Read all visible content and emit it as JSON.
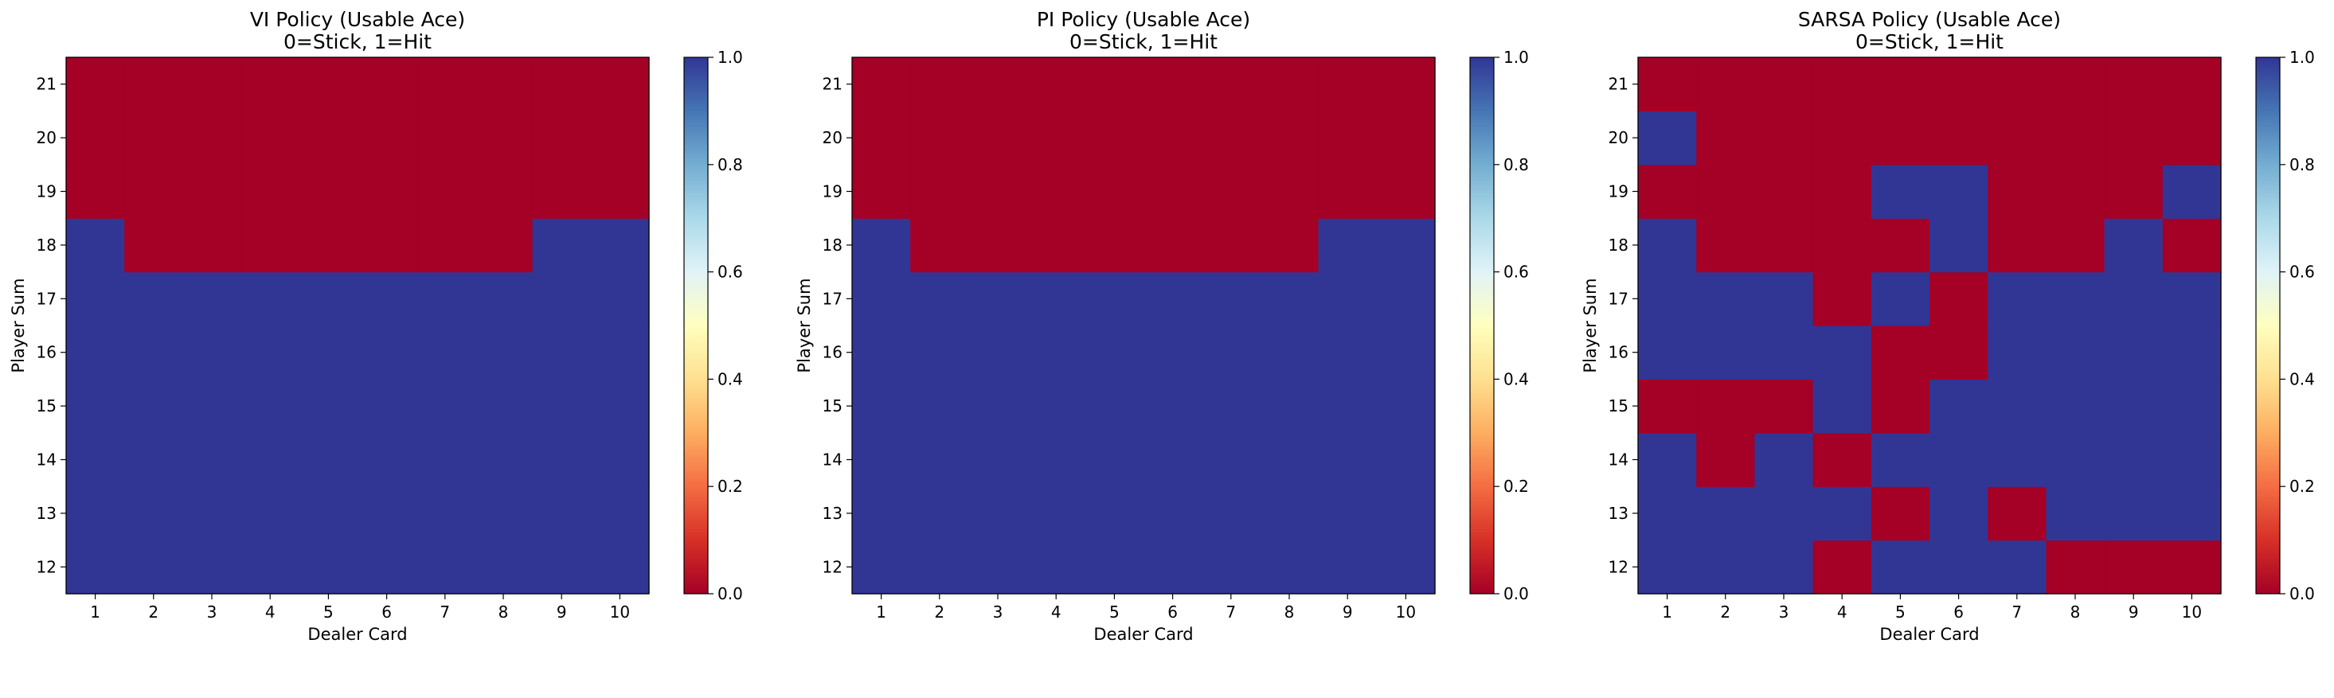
{
  "chart_data": [
    {
      "type": "heatmap",
      "title": "VI Policy (Usable Ace)",
      "subtitle": "0=Stick, 1=Hit",
      "xlabel": "Dealer Card",
      "ylabel": "Player Sum",
      "x": [
        1,
        2,
        3,
        4,
        5,
        6,
        7,
        8,
        9,
        10
      ],
      "y": [
        12,
        13,
        14,
        15,
        16,
        17,
        18,
        19,
        20,
        21
      ],
      "values": [
        [
          1,
          1,
          1,
          1,
          1,
          1,
          1,
          1,
          1,
          1
        ],
        [
          1,
          1,
          1,
          1,
          1,
          1,
          1,
          1,
          1,
          1
        ],
        [
          1,
          1,
          1,
          1,
          1,
          1,
          1,
          1,
          1,
          1
        ],
        [
          1,
          1,
          1,
          1,
          1,
          1,
          1,
          1,
          1,
          1
        ],
        [
          1,
          1,
          1,
          1,
          1,
          1,
          1,
          1,
          1,
          1
        ],
        [
          1,
          1,
          1,
          1,
          1,
          1,
          1,
          1,
          1,
          1
        ],
        [
          1,
          0,
          0,
          0,
          0,
          0,
          0,
          0,
          1,
          1
        ],
        [
          0,
          0,
          0,
          0,
          0,
          0,
          0,
          0,
          0,
          0
        ],
        [
          0,
          0,
          0,
          0,
          0,
          0,
          0,
          0,
          0,
          0
        ],
        [
          0,
          0,
          0,
          0,
          0,
          0,
          0,
          0,
          0,
          0
        ]
      ],
      "colorbar": {
        "range": [
          0,
          1
        ],
        "ticks": [
          "0.0",
          "0.2",
          "0.4",
          "0.6",
          "0.8",
          "1.0"
        ]
      }
    },
    {
      "type": "heatmap",
      "title": "PI Policy (Usable Ace)",
      "subtitle": "0=Stick, 1=Hit",
      "xlabel": "Dealer Card",
      "ylabel": "Player Sum",
      "x": [
        1,
        2,
        3,
        4,
        5,
        6,
        7,
        8,
        9,
        10
      ],
      "y": [
        12,
        13,
        14,
        15,
        16,
        17,
        18,
        19,
        20,
        21
      ],
      "values": [
        [
          1,
          1,
          1,
          1,
          1,
          1,
          1,
          1,
          1,
          1
        ],
        [
          1,
          1,
          1,
          1,
          1,
          1,
          1,
          1,
          1,
          1
        ],
        [
          1,
          1,
          1,
          1,
          1,
          1,
          1,
          1,
          1,
          1
        ],
        [
          1,
          1,
          1,
          1,
          1,
          1,
          1,
          1,
          1,
          1
        ],
        [
          1,
          1,
          1,
          1,
          1,
          1,
          1,
          1,
          1,
          1
        ],
        [
          1,
          1,
          1,
          1,
          1,
          1,
          1,
          1,
          1,
          1
        ],
        [
          1,
          0,
          0,
          0,
          0,
          0,
          0,
          0,
          1,
          1
        ],
        [
          0,
          0,
          0,
          0,
          0,
          0,
          0,
          0,
          0,
          0
        ],
        [
          0,
          0,
          0,
          0,
          0,
          0,
          0,
          0,
          0,
          0
        ],
        [
          0,
          0,
          0,
          0,
          0,
          0,
          0,
          0,
          0,
          0
        ]
      ],
      "colorbar": {
        "range": [
          0,
          1
        ],
        "ticks": [
          "0.0",
          "0.2",
          "0.4",
          "0.6",
          "0.8",
          "1.0"
        ]
      }
    },
    {
      "type": "heatmap",
      "title": "SARSA Policy (Usable Ace)",
      "subtitle": "0=Stick, 1=Hit",
      "xlabel": "Dealer Card",
      "ylabel": "Player Sum",
      "x": [
        1,
        2,
        3,
        4,
        5,
        6,
        7,
        8,
        9,
        10
      ],
      "y": [
        12,
        13,
        14,
        15,
        16,
        17,
        18,
        19,
        20,
        21
      ],
      "values": [
        [
          1,
          1,
          1,
          0,
          1,
          1,
          1,
          0,
          0,
          0
        ],
        [
          1,
          1,
          1,
          1,
          0,
          1,
          0,
          1,
          1,
          1
        ],
        [
          1,
          0,
          1,
          0,
          1,
          1,
          1,
          1,
          1,
          1
        ],
        [
          0,
          0,
          0,
          1,
          0,
          1,
          1,
          1,
          1,
          1
        ],
        [
          1,
          1,
          1,
          1,
          0,
          0,
          1,
          1,
          1,
          1
        ],
        [
          1,
          1,
          1,
          0,
          1,
          0,
          1,
          1,
          1,
          1
        ],
        [
          1,
          0,
          0,
          0,
          0,
          1,
          0,
          0,
          1,
          0
        ],
        [
          0,
          0,
          0,
          0,
          1,
          1,
          0,
          0,
          0,
          1
        ],
        [
          1,
          0,
          0,
          0,
          0,
          0,
          0,
          0,
          0,
          0
        ],
        [
          0,
          0,
          0,
          0,
          0,
          0,
          0,
          0,
          0,
          0
        ]
      ],
      "colorbar": {
        "range": [
          0,
          1
        ],
        "ticks": [
          "0.0",
          "0.2",
          "0.4",
          "0.6",
          "0.8",
          "1.0"
        ]
      }
    }
  ]
}
